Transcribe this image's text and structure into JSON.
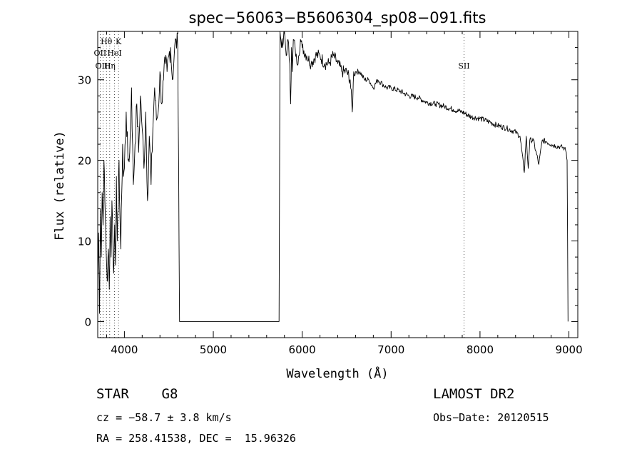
{
  "chart_data": {
    "type": "line",
    "title": "spec−56063−B5606304_sp08−091.fits",
    "xlabel": "Wavelength (Å)",
    "ylabel": "Flux (relative)",
    "xlim": [
      3700,
      9100
    ],
    "ylim": [
      -2,
      36
    ],
    "xticks": [
      4000,
      5000,
      6000,
      7000,
      8000,
      9000
    ],
    "yticks": [
      0,
      10,
      20,
      30
    ],
    "grid": false,
    "series": [
      {
        "x": [
          3700,
          3710,
          3720,
          3730,
          3740,
          3750,
          3760,
          3770,
          3780,
          3790,
          3800,
          3810,
          3820,
          3830,
          3840,
          3850,
          3860,
          3870,
          3880,
          3890,
          3900,
          3910,
          3920,
          3930,
          3940,
          3950,
          3960,
          3970,
          3980,
          3990,
          4000,
          4020,
          4040,
          4060,
          4080,
          4100,
          4120,
          4140,
          4160,
          4180,
          4200,
          4220,
          4240,
          4260,
          4280,
          4300,
          4320,
          4340,
          4360,
          4380,
          4400,
          4420,
          4440,
          4460,
          4480,
          4500,
          4520,
          4540,
          4560,
          4580,
          4600,
          4610,
          4620,
          5740,
          5750,
          5760,
          5780,
          5800,
          5820,
          5840,
          5860,
          5870,
          5880,
          5890,
          5900,
          5920,
          5940,
          5960,
          5980,
          6000,
          6050,
          6100,
          6150,
          6200,
          6250,
          6300,
          6350,
          6400,
          6450,
          6500,
          6540,
          6563,
          6580,
          6600,
          6650,
          6700,
          6750,
          6800,
          6850,
          6900,
          6950,
          7000,
          7100,
          7200,
          7300,
          7400,
          7500,
          7600,
          7700,
          7800,
          7900,
          8000,
          8100,
          8200,
          8300,
          8400,
          8450,
          8498,
          8520,
          8542,
          8560,
          8600,
          8662,
          8700,
          8750,
          8800,
          8850,
          8900,
          8950,
          8970,
          8980,
          8990
        ],
        "y": [
          5,
          11,
          1,
          14,
          8,
          16,
          12,
          20,
          15,
          11,
          7,
          5,
          9,
          4,
          13,
          8,
          15,
          10,
          6,
          12,
          7,
          18,
          10,
          14,
          20,
          13,
          9,
          16,
          22,
          18,
          19,
          26,
          20,
          21,
          29,
          17,
          22,
          27,
          21,
          28,
          24,
          19,
          26,
          15,
          23,
          17,
          24,
          29,
          25,
          26,
          31,
          27,
          30,
          32,
          31,
          33,
          34,
          30,
          33,
          35,
          34,
          20,
          0,
          0,
          36,
          35,
          34,
          36,
          33,
          35,
          32,
          27,
          34,
          31,
          35,
          34,
          32,
          33,
          35,
          34,
          33,
          32,
          33,
          33,
          32,
          32,
          33,
          32,
          31,
          31,
          30,
          26,
          31,
          31,
          31,
          30,
          30,
          29,
          30,
          29.5,
          29,
          29,
          28.6,
          28,
          27.8,
          27.2,
          27,
          26.7,
          26.3,
          26,
          25.4,
          25.2,
          24.8,
          24.3,
          24,
          23.5,
          23,
          18.5,
          23,
          19,
          22.5,
          22.5,
          19.5,
          22.5,
          22.3,
          22,
          21.8,
          21.7,
          21.5,
          21,
          20,
          0
        ]
      }
    ],
    "gap": {
      "x_start": 4620,
      "x_end": 5740,
      "y": 0
    },
    "spectral_lines": [
      {
        "name": "Hθ",
        "x": 3798,
        "row": 1
      },
      {
        "name": "K",
        "x": 3934,
        "row": 1
      },
      {
        "name": "OII",
        "x": 3727,
        "row": 2
      },
      {
        "name": "HeI",
        "x": 3889,
        "row": 2
      },
      {
        "name": "OIII",
        "x": 3760,
        "row": 3
      },
      {
        "name": "Hη",
        "x": 3835,
        "row": 3
      },
      {
        "name": "SII",
        "x": 7820,
        "row": 3
      }
    ]
  },
  "info": {
    "class": "STAR    G8",
    "survey": "LAMOST DR2",
    "cz": "cz = −58.7 ± 3.8 km/s",
    "obs_date": "Obs−Date: 20120515",
    "coords": "RA = 258.41538, DEC =  15.96326"
  }
}
